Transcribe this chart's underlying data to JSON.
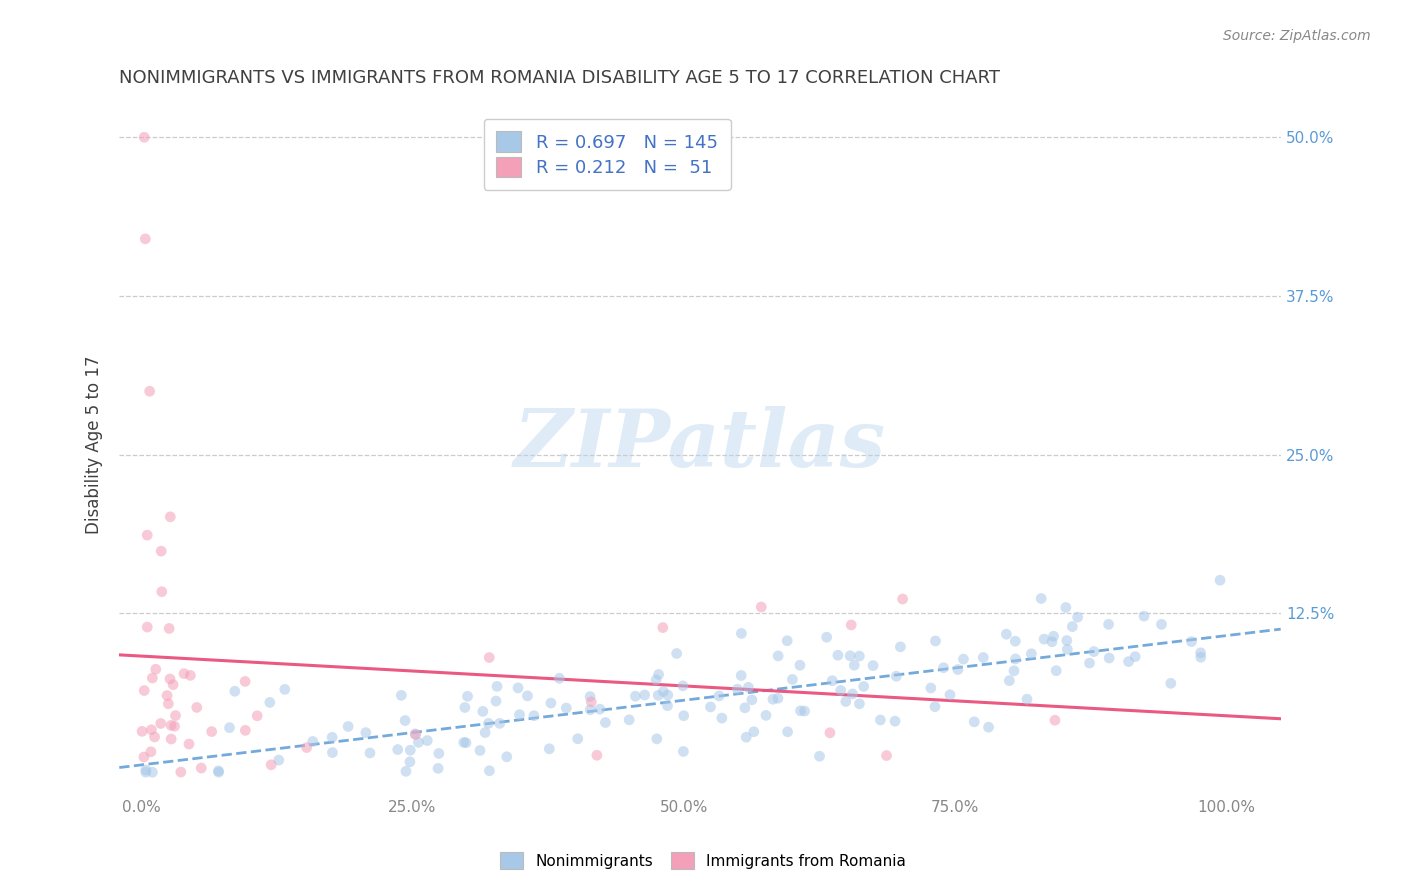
{
  "title": "NONIMMIGRANTS VS IMMIGRANTS FROM ROMANIA DISABILITY AGE 5 TO 17 CORRELATION CHART",
  "source": "Source: ZipAtlas.com",
  "ylabel": "Disability Age 5 to 17",
  "xlim": [
    -0.02,
    1.05
  ],
  "ylim": [
    -0.015,
    0.53
  ],
  "nonimmigrants_R": 0.697,
  "nonimmigrants_N": 145,
  "immigrants_R": 0.212,
  "immigrants_N": 51,
  "blue_color": "#A8C8E8",
  "pink_color": "#F4A0B8",
  "blue_line_color": "#5B9BD5",
  "pink_line_color": "#E8507A",
  "blue_trend_style": "--",
  "pink_trend_style": "-",
  "legend_label_1": "Nonimmigrants",
  "legend_label_2": "Immigrants from Romania",
  "background_color": "#FFFFFF",
  "grid_color": "#CCCCCC",
  "title_color": "#404040",
  "axis_color": "#888888",
  "text_color_blue": "#4472C4",
  "marker_size": 60,
  "marker_alpha": 0.55
}
